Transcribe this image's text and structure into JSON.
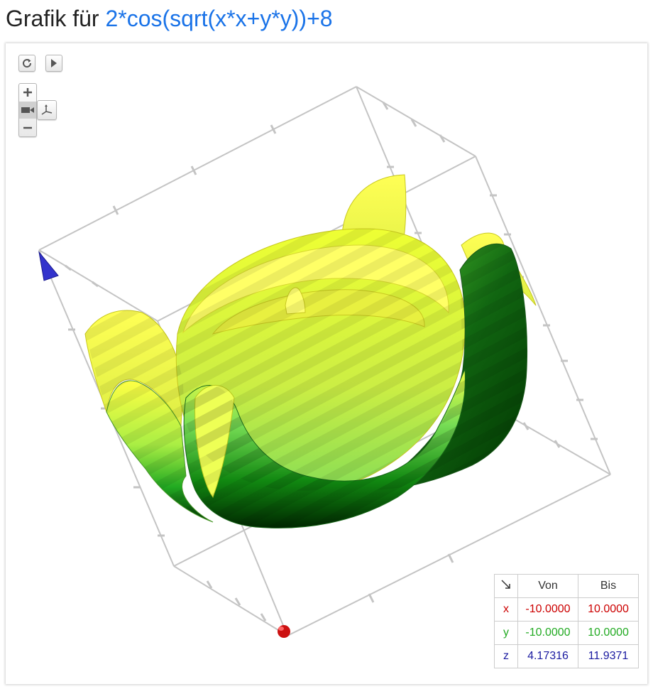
{
  "header": {
    "prefix": "Grafik für",
    "function": "2*cos(sqrt(x*x+y*y))+8"
  },
  "controls": {
    "reset_icon": "reload-icon",
    "animate_icon": "play-icon",
    "zoom_in_icon": "plus-icon",
    "camera_icon": "camera-icon",
    "zoom_out_icon": "minus-icon",
    "axes_icon": "axes-icon"
  },
  "range_table": {
    "corner_icon": "arrow-down-right-icon",
    "headers": [
      "Von",
      "Bis"
    ],
    "rows": [
      {
        "axis": "x",
        "from": "-10.0000",
        "to": "10.0000",
        "color": "#cc0000"
      },
      {
        "axis": "y",
        "from": "-10.0000",
        "to": "10.0000",
        "color": "#22aa22"
      },
      {
        "axis": "z",
        "from": "4.17316",
        "to": "11.9371",
        "color": "#1a1aa0"
      }
    ]
  },
  "colors": {
    "function_link": "#1a73e8",
    "surface_high": "#ffff33",
    "surface_mid": "#66e066",
    "surface_low": "#004400",
    "x_axis": "#cc0000",
    "y_axis": "#22aa22",
    "z_axis": "#1a1aa0"
  }
}
